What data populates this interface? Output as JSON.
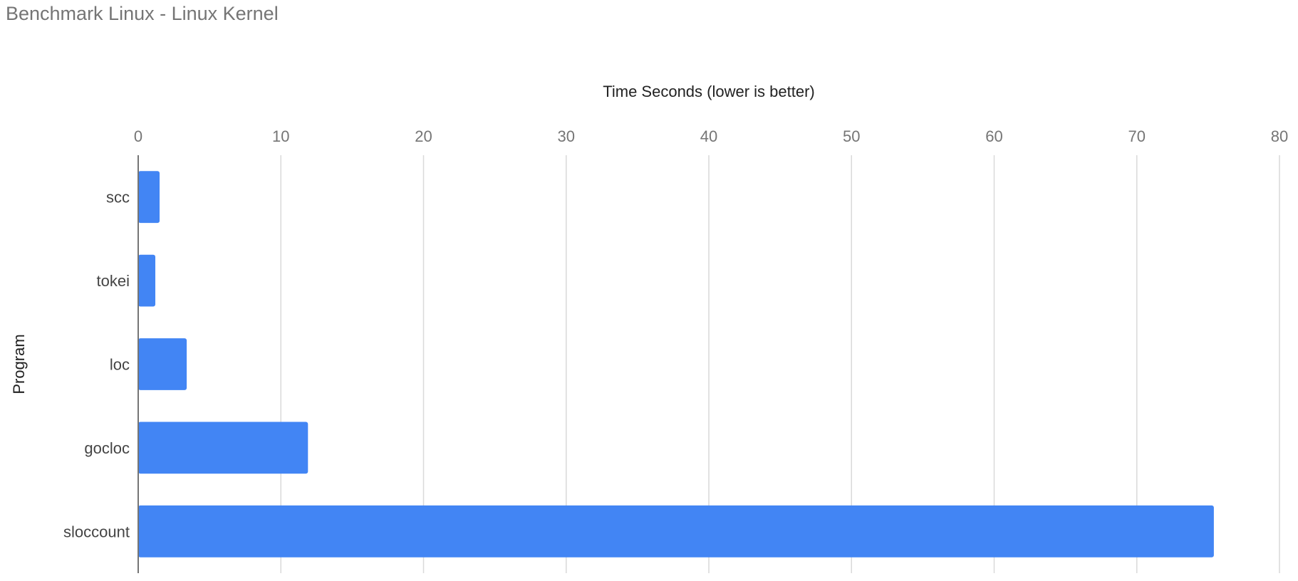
{
  "chart_data": {
    "type": "bar",
    "orientation": "horizontal",
    "title": "Benchmark Linux - Linux Kernel",
    "xlabel": "Time Seconds (lower is better)",
    "ylabel": "Program",
    "categories": [
      "scc",
      "tokei",
      "loc",
      "gocloc",
      "sloccount"
    ],
    "values": [
      1.5,
      1.2,
      3.4,
      11.9,
      75.4
    ],
    "xlim": [
      0,
      80
    ],
    "xticks": [
      0,
      10,
      20,
      30,
      40,
      50,
      60,
      70,
      80
    ],
    "x_axis_position": "top",
    "grid": true,
    "bar_color": "#4285f4"
  }
}
